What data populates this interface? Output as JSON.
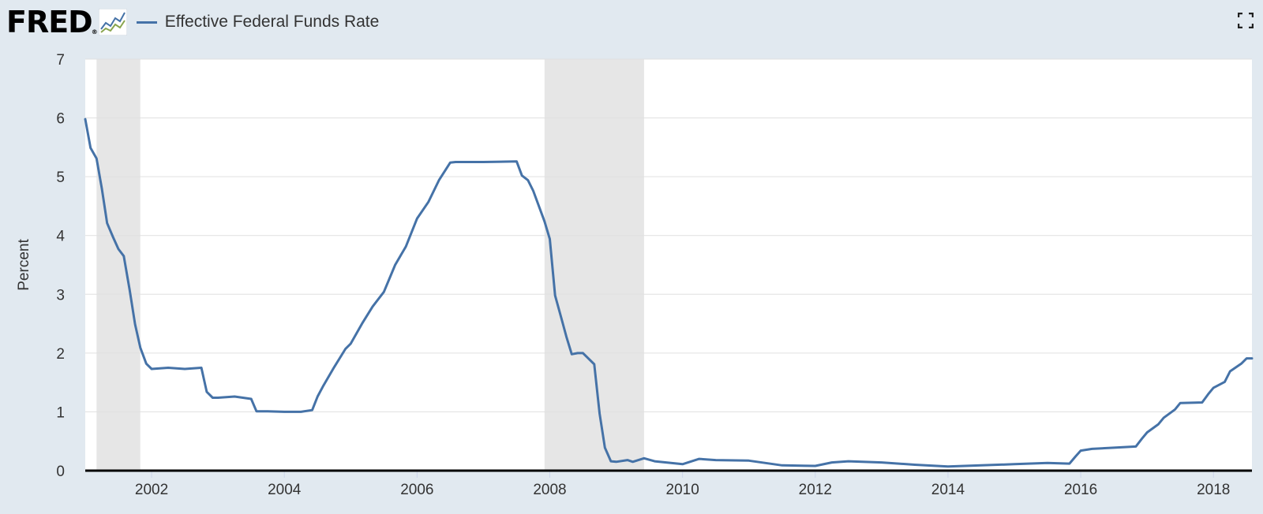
{
  "header": {
    "logo_text": "FRED",
    "logo_reg": "®",
    "legend_label": "Effective Federal Funds Rate",
    "icons": {
      "logo_graph": "fred-graph-icon",
      "expand": "fullscreen-icon"
    }
  },
  "chart_data": {
    "type": "line",
    "title": "",
    "xlabel": "",
    "ylabel": "Percent",
    "xlim": [
      2001.0,
      2018.58
    ],
    "ylim": [
      0,
      7
    ],
    "grid": true,
    "yticks": [
      0,
      1,
      2,
      3,
      4,
      5,
      6,
      7
    ],
    "xticks": [
      2002,
      2004,
      2006,
      2008,
      2010,
      2012,
      2014,
      2016,
      2018
    ],
    "recessions": [
      [
        2001.17,
        2001.83
      ],
      [
        2007.92,
        2009.42
      ]
    ],
    "series": [
      {
        "name": "Effective Federal Funds Rate",
        "color": "#4572a7",
        "x": [
          2001.0,
          2001.08,
          2001.17,
          2001.25,
          2001.33,
          2001.42,
          2001.5,
          2001.58,
          2001.67,
          2001.75,
          2001.83,
          2001.92,
          2002.0,
          2002.25,
          2002.5,
          2002.75,
          2002.83,
          2002.92,
          2003.0,
          2003.25,
          2003.5,
          2003.58,
          2003.75,
          2004.0,
          2004.25,
          2004.42,
          2004.5,
          2004.58,
          2004.75,
          2004.92,
          2005.0,
          2005.17,
          2005.33,
          2005.5,
          2005.67,
          2005.83,
          2006.0,
          2006.17,
          2006.33,
          2006.5,
          2006.58,
          2007.0,
          2007.5,
          2007.58,
          2007.67,
          2007.75,
          2007.92,
          2008.0,
          2008.08,
          2008.17,
          2008.25,
          2008.33,
          2008.42,
          2008.5,
          2008.67,
          2008.75,
          2008.83,
          2008.92,
          2009.0,
          2009.17,
          2009.25,
          2009.42,
          2009.58,
          2010.0,
          2010.25,
          2010.5,
          2011.0,
          2011.5,
          2012.0,
          2012.25,
          2012.5,
          2013.0,
          2013.5,
          2014.0,
          2014.5,
          2015.0,
          2015.5,
          2015.83,
          2015.92,
          2016.0,
          2016.17,
          2016.5,
          2016.83,
          2016.92,
          2017.0,
          2017.17,
          2017.25,
          2017.42,
          2017.5,
          2017.83,
          2017.92,
          2018.0,
          2018.17,
          2018.25,
          2018.42,
          2018.5,
          2018.58
        ],
        "values": [
          5.98,
          5.49,
          5.31,
          4.8,
          4.21,
          3.97,
          3.77,
          3.65,
          3.07,
          2.49,
          2.09,
          1.82,
          1.73,
          1.75,
          1.73,
          1.75,
          1.34,
          1.24,
          1.24,
          1.26,
          1.22,
          1.01,
          1.01,
          1.0,
          1.0,
          1.03,
          1.26,
          1.43,
          1.76,
          2.07,
          2.16,
          2.5,
          2.79,
          3.04,
          3.5,
          3.81,
          4.29,
          4.57,
          4.94,
          5.24,
          5.25,
          5.25,
          5.26,
          5.02,
          4.94,
          4.76,
          4.24,
          3.94,
          2.98,
          2.61,
          2.28,
          1.98,
          2.0,
          2.0,
          1.81,
          0.97,
          0.39,
          0.16,
          0.15,
          0.18,
          0.15,
          0.21,
          0.16,
          0.11,
          0.2,
          0.18,
          0.17,
          0.09,
          0.08,
          0.14,
          0.16,
          0.14,
          0.1,
          0.07,
          0.09,
          0.11,
          0.13,
          0.12,
          0.24,
          0.34,
          0.37,
          0.39,
          0.41,
          0.54,
          0.65,
          0.79,
          0.9,
          1.04,
          1.15,
          1.16,
          1.3,
          1.41,
          1.51,
          1.69,
          1.82,
          1.91,
          1.91
        ]
      }
    ]
  }
}
